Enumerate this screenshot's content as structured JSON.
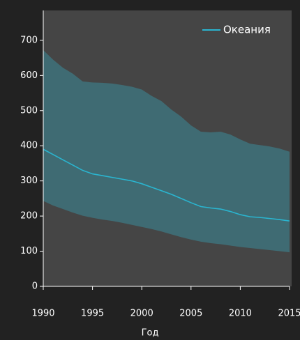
{
  "chart_data": {
    "type": "line",
    "x_label": "Год",
    "x": [
      1990,
      1991,
      1992,
      1993,
      1994,
      1995,
      1996,
      1997,
      1998,
      1999,
      2000,
      2001,
      2002,
      2003,
      2004,
      2005,
      2006,
      2007,
      2008,
      2009,
      2010,
      2011,
      2012,
      2013,
      2014,
      2015
    ],
    "series": [
      {
        "name": "Океания",
        "color": "#2ab5d0",
        "values": [
          390,
          375,
          360,
          345,
          330,
          320,
          315,
          310,
          305,
          300,
          292,
          282,
          272,
          262,
          250,
          238,
          227,
          223,
          220,
          213,
          204,
          198,
          196,
          193,
          190,
          186
        ]
      }
    ],
    "band": {
      "color": "#3f6b73",
      "upper": [
        672,
        645,
        622,
        605,
        583,
        580,
        579,
        577,
        573,
        568,
        560,
        542,
        527,
        503,
        483,
        458,
        440,
        438,
        440,
        432,
        418,
        406,
        402,
        398,
        392,
        383
      ],
      "lower": [
        243,
        230,
        220,
        210,
        201,
        195,
        190,
        186,
        181,
        175,
        169,
        163,
        156,
        148,
        140,
        133,
        127,
        123,
        120,
        116,
        112,
        109,
        106,
        103,
        100,
        97
      ]
    },
    "xlim": [
      1990,
      2015
    ],
    "xticks": [
      1990,
      1995,
      2000,
      2005,
      2010,
      2015
    ],
    "ylim": [
      0,
      785
    ],
    "yticks": [
      0,
      100,
      200,
      300,
      400,
      500,
      600,
      700
    ],
    "legend": "top-right"
  }
}
